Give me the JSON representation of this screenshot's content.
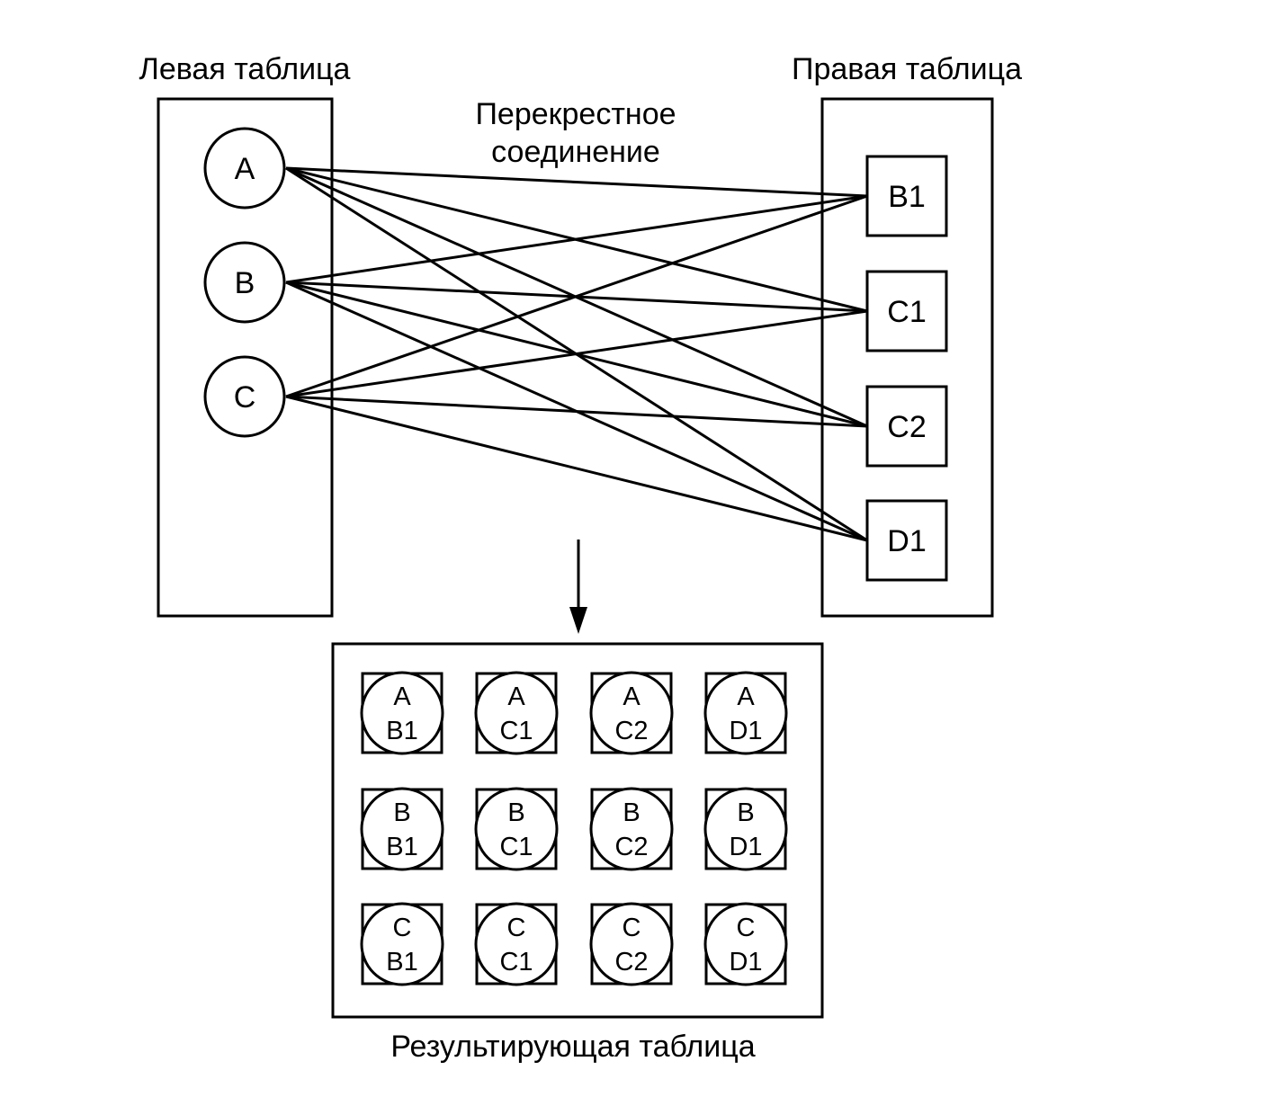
{
  "left_table": {
    "title": "Левая таблица",
    "rows": [
      "A",
      "B",
      "C"
    ]
  },
  "right_table": {
    "title": "Правая таблица",
    "rows": [
      "B1",
      "C1",
      "C2",
      "D1"
    ]
  },
  "join_label": {
    "line1": "Перекрестное",
    "line2": "соединение"
  },
  "result_table": {
    "title": "Результирующая таблица",
    "rows": [
      [
        [
          "A",
          "B1"
        ],
        [
          "A",
          "C1"
        ],
        [
          "A",
          "C2"
        ],
        [
          "A",
          "D1"
        ]
      ],
      [
        [
          "B",
          "B1"
        ],
        [
          "B",
          "C1"
        ],
        [
          "B",
          "C2"
        ],
        [
          "B",
          "D1"
        ]
      ],
      [
        [
          "C",
          "B1"
        ],
        [
          "C",
          "C1"
        ],
        [
          "C",
          "C2"
        ],
        [
          "C",
          "D1"
        ]
      ]
    ]
  }
}
